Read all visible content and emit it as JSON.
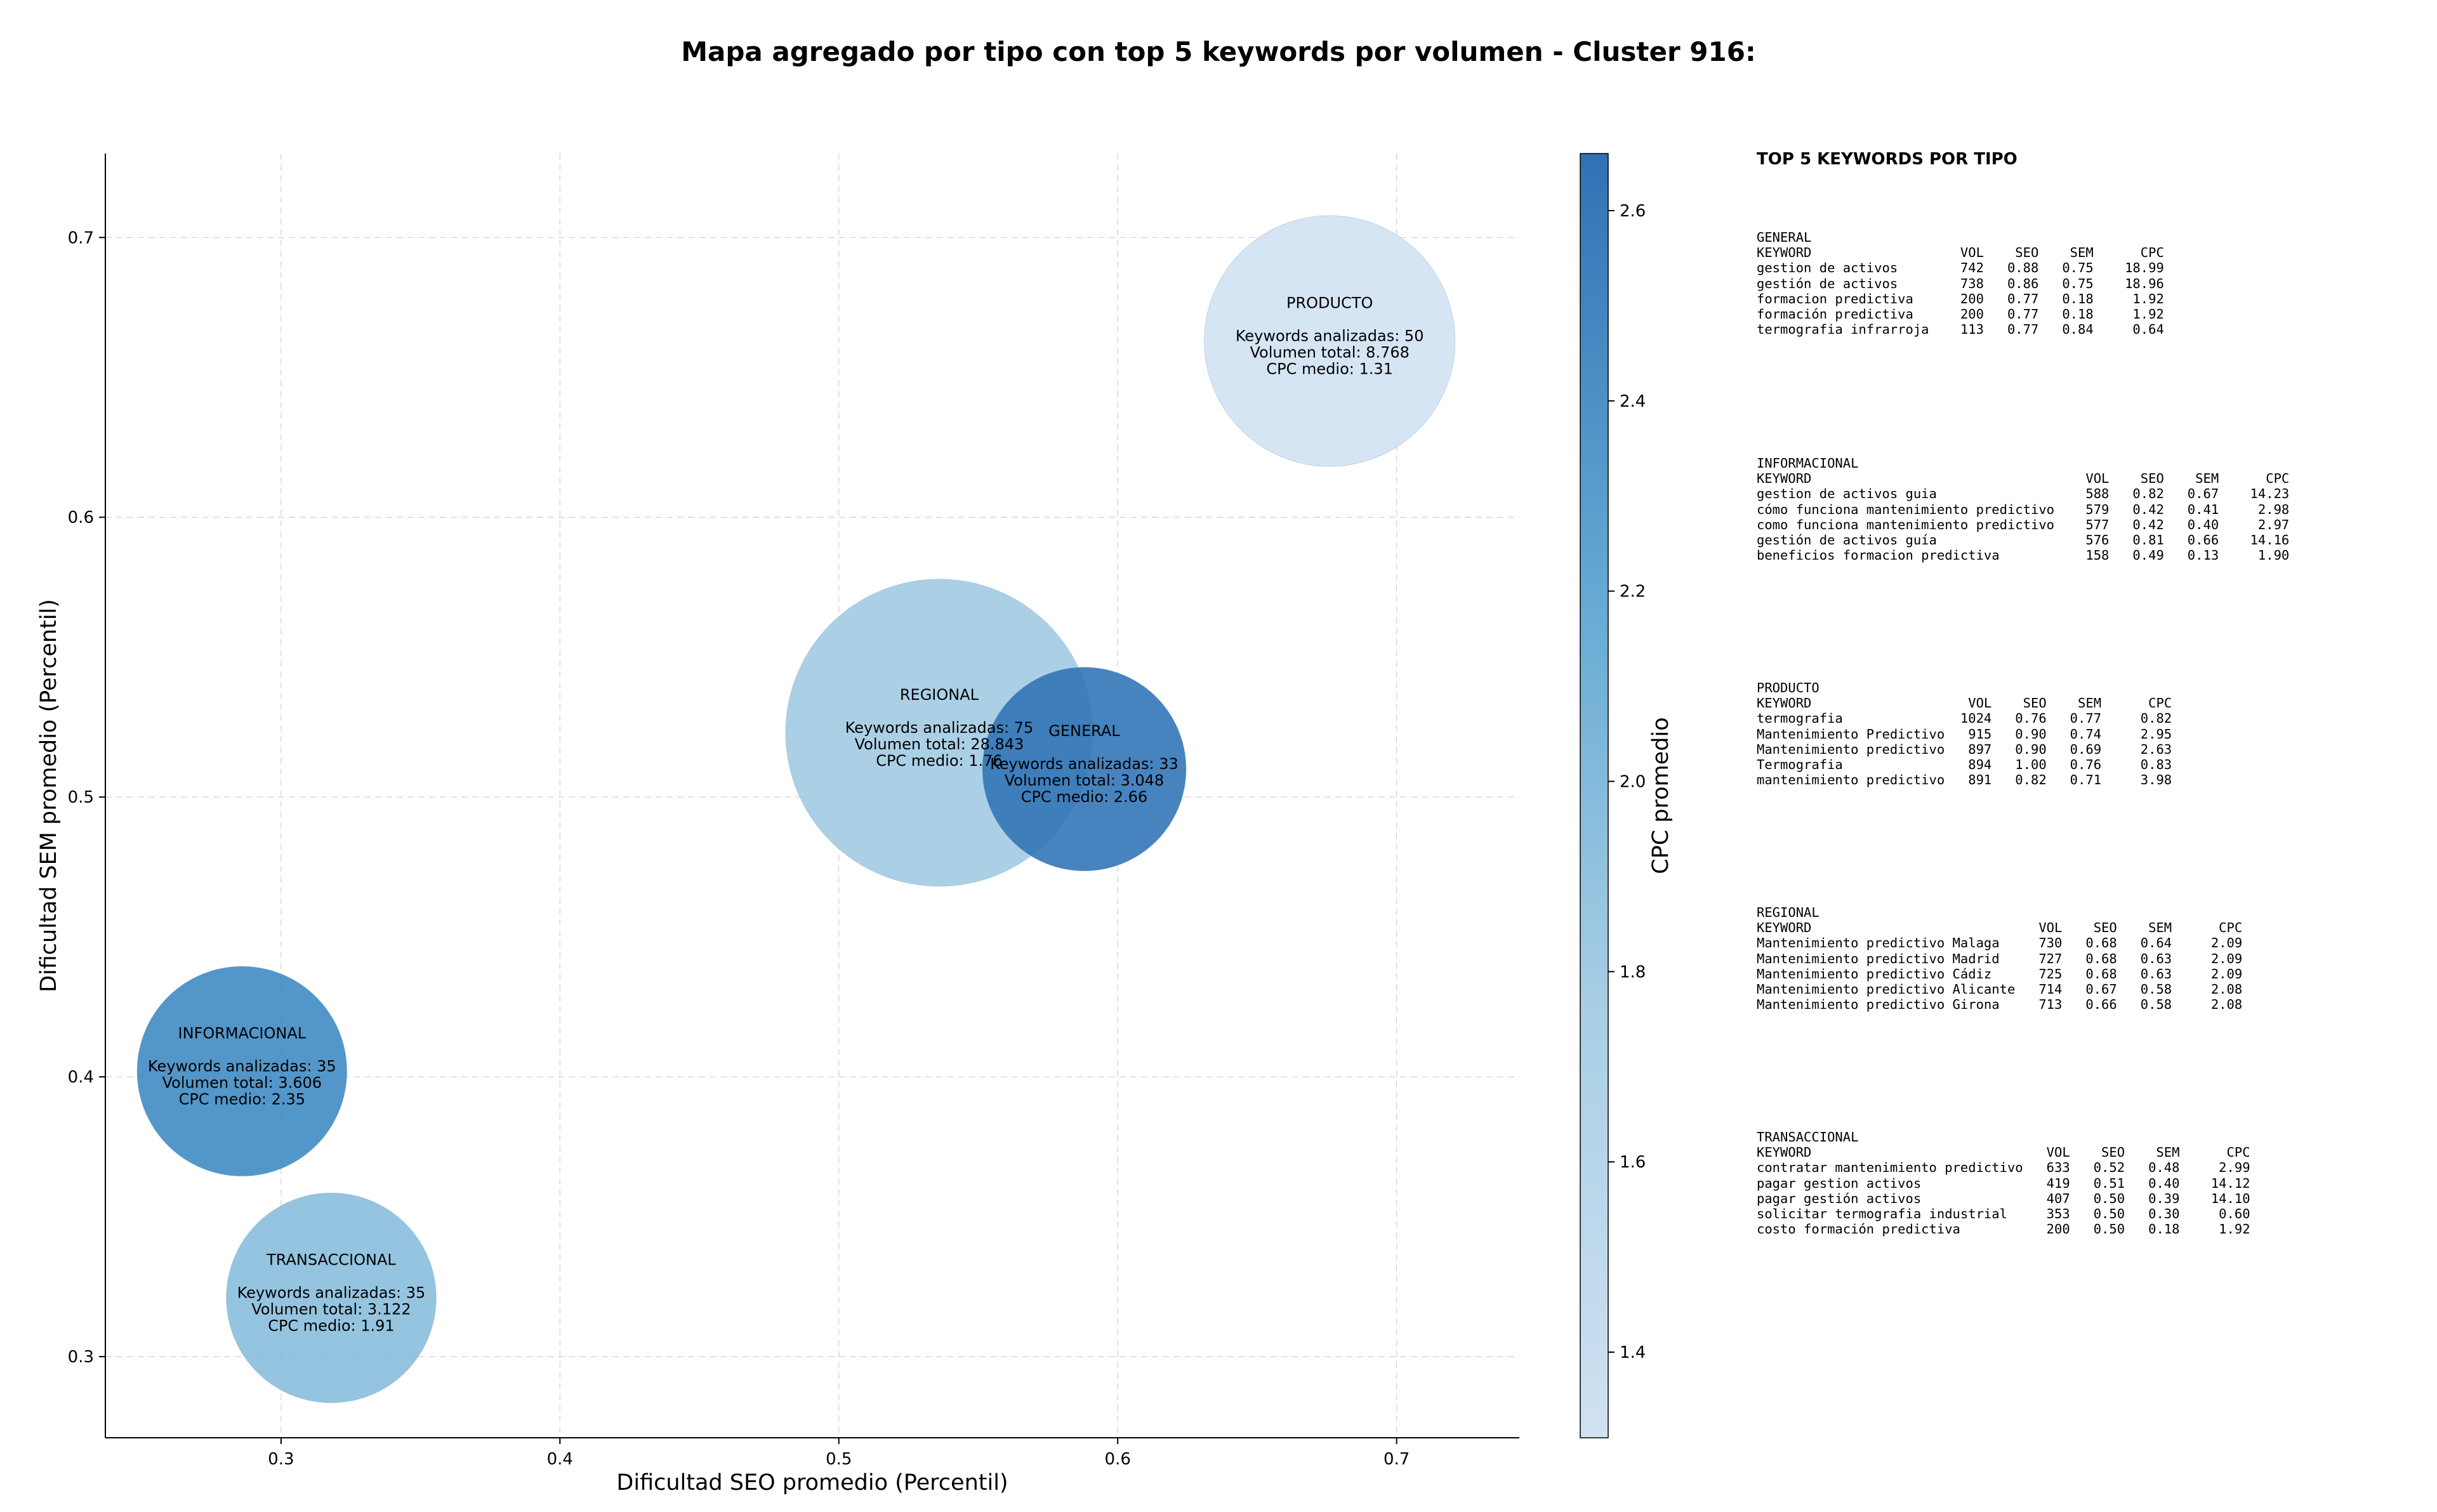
{
  "chart_data": {
    "type": "scatter",
    "title": "Mapa agregado por tipo con top 5 keywords por volumen - Cluster 916:",
    "xlabel": "Dificultad SEO promedio (Percentil)",
    "ylabel": "Dificultad SEM promedio (Percentil)",
    "xlim": [
      0.237,
      0.744
    ],
    "ylim": [
      0.271,
      0.73
    ],
    "xticks": [
      0.3,
      0.4,
      0.5,
      0.6,
      0.7
    ],
    "yticks": [
      0.3,
      0.4,
      0.5,
      0.6,
      0.7
    ],
    "xtick_labels": [
      "0.3",
      "0.4",
      "0.5",
      "0.6",
      "0.7"
    ],
    "ytick_labels": [
      "0.3",
      "0.4",
      "0.5",
      "0.6",
      "0.7"
    ],
    "grid": true,
    "colorbar": {
      "label": "CPC promedio",
      "range": [
        1.31,
        2.66
      ],
      "ticks": [
        1.4,
        1.6,
        1.8,
        2.0,
        2.2,
        2.4,
        2.6
      ],
      "tick_labels": [
        "1.4",
        "1.6",
        "1.8",
        "2.0",
        "2.2",
        "2.4",
        "2.6"
      ],
      "color_low": "#d0e1f2",
      "color_high": "#2e72b5"
    },
    "points": [
      {
        "name": "PRODUCTO",
        "x": 0.676,
        "y": 0.663,
        "size": 50,
        "color_value": 1.31,
        "color": "#d0e1f2",
        "lines": [
          "Keywords analizadas: 50",
          "Volumen total: 8.768",
          "CPC medio: 1.31"
        ]
      },
      {
        "name": "GENERAL",
        "x": 0.588,
        "y": 0.51,
        "size": 33,
        "color_value": 2.66,
        "color": "#2e72b5",
        "lines": [
          "Keywords analizadas: 33",
          "Volumen total: 3.048",
          "CPC medio: 2.66"
        ]
      },
      {
        "name": "REGIONAL",
        "x": 0.536,
        "y": 0.523,
        "size": 75,
        "color_value": 1.76,
        "color": "#9fcae2",
        "lines": [
          "Keywords analizadas: 75",
          "Volumen total: 28.843",
          "CPC medio: 1.76"
        ]
      },
      {
        "name": "INFORMACIONAL",
        "x": 0.286,
        "y": 0.402,
        "size": 35,
        "color_value": 2.35,
        "color": "#3b87c2",
        "lines": [
          "Keywords analizadas: 35",
          "Volumen total: 3.606",
          "CPC medio: 2.35"
        ]
      },
      {
        "name": "TRANSACCIONAL",
        "x": 0.318,
        "y": 0.321,
        "size": 35,
        "color_value": 1.91,
        "color": "#85bcdc",
        "lines": [
          "Keywords analizadas: 35",
          "Volumen total: 3.122",
          "CPC medio: 1.91"
        ]
      }
    ]
  },
  "keywords_panel": {
    "heading": "TOP 5 KEYWORDS POR TIPO",
    "sections": [
      {
        "type": "GENERAL",
        "text": "KEYWORD                   VOL    SEO    SEM      CPC\ngestion de activos        742   0.88   0.75    18.99\ngestión de activos        738   0.86   0.75    18.96\nformacion predictiva      200   0.77   0.18     1.92\nformación predictiva      200   0.77   0.18     1.92\ntermografia infrarroja    113   0.77   0.84     0.64"
      },
      {
        "type": "INFORMACIONAL",
        "text": "KEYWORD                                   VOL    SEO    SEM      CPC\ngestion de activos guia                   588   0.82   0.67    14.23\ncómo funciona mantenimiento predictivo    579   0.42   0.41     2.98\ncomo funciona mantenimiento predictivo    577   0.42   0.40     2.97\ngestión de activos guía                   576   0.81   0.66    14.16\nbeneficios formacion predictiva           158   0.49   0.13     1.90"
      },
      {
        "type": "PRODUCTO",
        "text": "KEYWORD                    VOL    SEO    SEM      CPC\ntermografia               1024   0.76   0.77     0.82\nMantenimiento Predictivo   915   0.90   0.74     2.95\nMantenimiento predictivo   897   0.90   0.69     2.63\nTermografia                894   1.00   0.76     0.83\nmantenimiento predictivo   891   0.82   0.71     3.98"
      },
      {
        "type": "REGIONAL",
        "text": "KEYWORD                             VOL    SEO    SEM      CPC\nMantenimiento predictivo Malaga     730   0.68   0.64     2.09\nMantenimiento predictivo Madrid     727   0.68   0.63     2.09\nMantenimiento predictivo Cádiz      725   0.68   0.63     2.09\nMantenimiento predictivo Alicante   714   0.67   0.58     2.08\nMantenimiento predictivo Girona     713   0.66   0.58     2.08"
      },
      {
        "type": "TRANSACCIONAL",
        "text": "KEYWORD                              VOL    SEO    SEM      CPC\ncontratar mantenimiento predictivo   633   0.52   0.48     2.99\npagar gestion activos                419   0.51   0.40    14.12\npagar gestión activos                407   0.50   0.39    14.10\nsolicitar termografia industrial     353   0.50   0.30     0.60\ncosto formación predictiva           200   0.50   0.18     1.92"
      }
    ]
  }
}
